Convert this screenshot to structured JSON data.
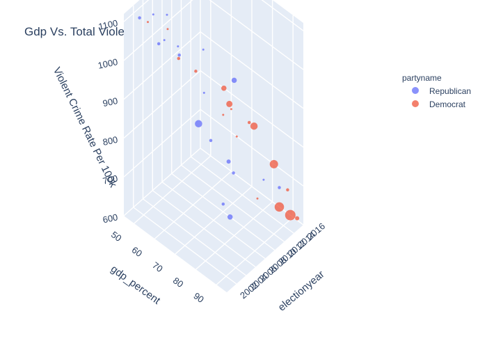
{
  "chart_data": {
    "type": "scatter3d",
    "title": "Gdp Vs. Total Violent Crime Over Time",
    "legend": {
      "title": "partyname",
      "placement": "top-right",
      "entries": [
        {
          "name": "Republican",
          "color": "#636efa"
        },
        {
          "name": "Democrat",
          "color": "#ef553b"
        }
      ]
    },
    "axes": {
      "x": {
        "label": "electionyear",
        "range": [
          2000,
          2016
        ],
        "ticks": [
          "2002",
          "2004",
          "2006",
          "2008",
          "2010",
          "2012",
          "2014",
          "2016"
        ]
      },
      "y": {
        "label": "gdp_percent",
        "range": [
          45,
          95
        ],
        "ticks": [
          "50",
          "60",
          "70",
          "80",
          "90"
        ]
      },
      "z": {
        "label": "Violent Crime Rate Per 100k",
        "range": [
          600,
          1120
        ],
        "ticks": [
          "600",
          "700",
          "800",
          "900",
          "1000",
          "1100"
        ]
      }
    },
    "grid": true,
    "series": [
      {
        "name": "Republican",
        "color": "#636efa",
        "points": [
          [
            2002,
            48,
            1100,
            3
          ],
          [
            2004,
            50,
            1095,
            2
          ],
          [
            2006,
            52,
            1080,
            2
          ],
          [
            2003,
            55,
            1050,
            3
          ],
          [
            2006,
            58,
            1000,
            3
          ],
          [
            2002,
            60,
            1090,
            2
          ],
          [
            2004,
            62,
            1060,
            2
          ],
          [
            2008,
            65,
            1020,
            2
          ],
          [
            2006,
            70,
            950,
            2
          ],
          [
            2004,
            72,
            900,
            7
          ],
          [
            2008,
            80,
            1000,
            5
          ],
          [
            2010,
            64,
            760,
            3
          ],
          [
            2012,
            68,
            700,
            4
          ],
          [
            2010,
            75,
            720,
            3
          ],
          [
            2012,
            85,
            720,
            2
          ],
          [
            2014,
            88,
            690,
            3
          ],
          [
            2008,
            78,
            640,
            5
          ],
          [
            2010,
            70,
            620,
            3
          ]
        ]
      },
      {
        "name": "Democrat",
        "color": "#ef553b",
        "points": [
          [
            2002,
            52,
            1105,
            2
          ],
          [
            2004,
            57,
            1085,
            2
          ],
          [
            2007,
            48,
            1110,
            4
          ],
          [
            2005,
            60,
            1010,
            3
          ],
          [
            2006,
            66,
            990,
            3
          ],
          [
            2008,
            75,
            960,
            5
          ],
          [
            2007,
            80,
            950,
            6
          ],
          [
            2010,
            70,
            850,
            2
          ],
          [
            2012,
            78,
            840,
            3
          ],
          [
            2010,
            85,
            880,
            7
          ],
          [
            2012,
            90,
            780,
            8
          ],
          [
            2014,
            92,
            700,
            3
          ],
          [
            2015,
            65,
            720,
            2
          ],
          [
            2012,
            82,
            660,
            2
          ],
          [
            2014,
            88,
            640,
            9
          ],
          [
            2015,
            91,
            620,
            10
          ],
          [
            2016,
            92,
            605,
            4
          ],
          [
            2016,
            60,
            760,
            2
          ]
        ]
      }
    ]
  }
}
